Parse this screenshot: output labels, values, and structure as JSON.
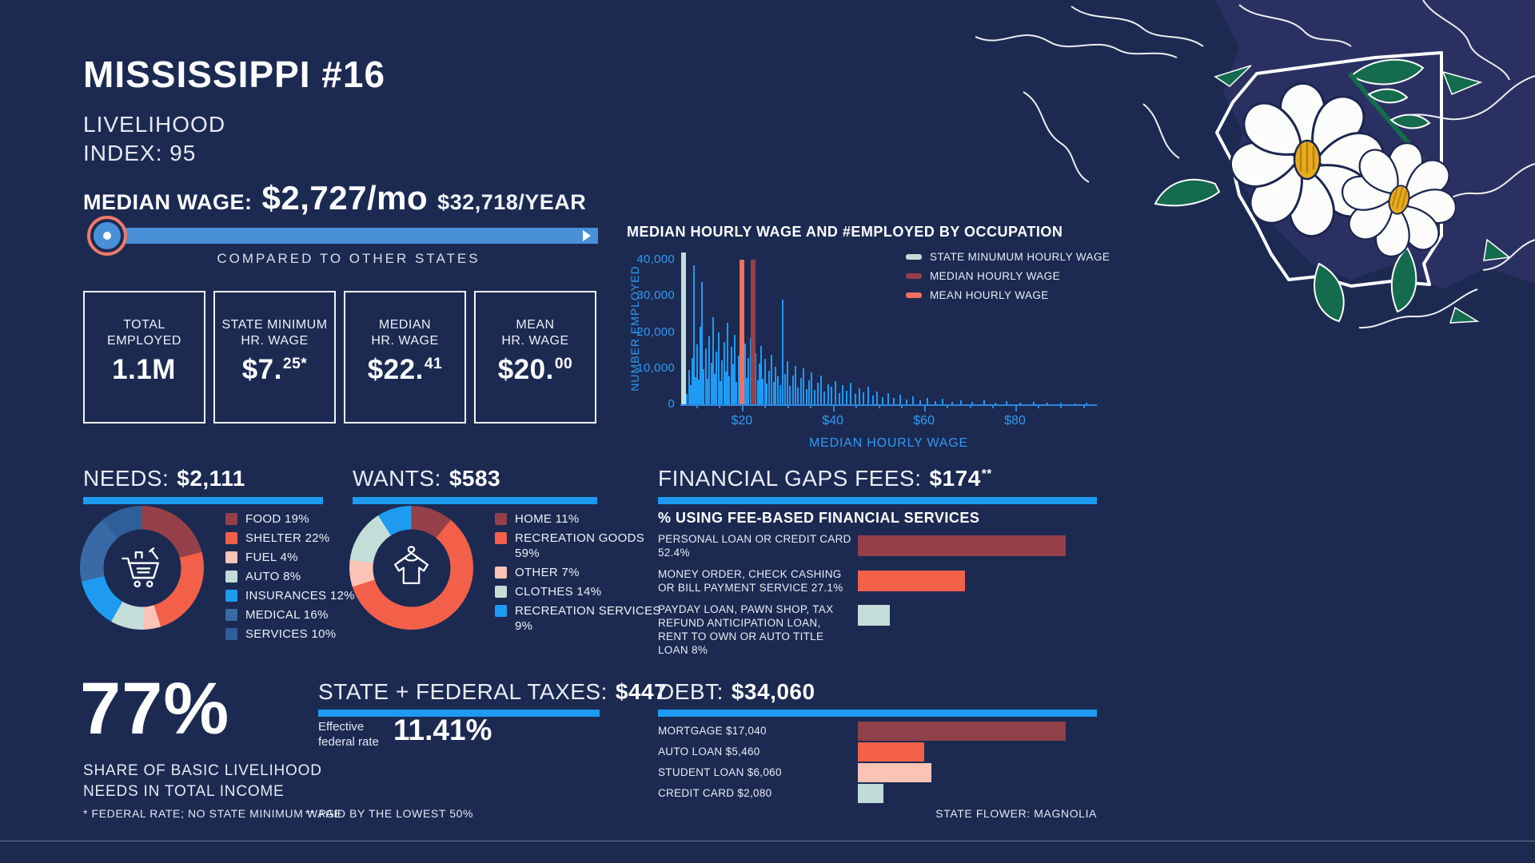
{
  "header": {
    "title": "MISSISSIPPI #16",
    "subtitle1": "LIVELIHOOD",
    "subtitle2": "INDEX: 95"
  },
  "median_wage": {
    "label": "MEDIAN WAGE:",
    "monthly": "$2,727/mo",
    "yearly": "$32,718/YEAR",
    "slider_caption": "COMPARED TO OTHER STATES"
  },
  "stat_boxes": [
    {
      "line1": "TOTAL",
      "line2": "EMPLOYED",
      "value": "1.1M",
      "sup": ""
    },
    {
      "line1": "STATE MINIMUM",
      "line2": "HR. WAGE",
      "value": "$7.",
      "sup": "25*"
    },
    {
      "line1": "MEDIAN",
      "line2": "HR. WAGE",
      "value": "$22.",
      "sup": "41"
    },
    {
      "line1": "MEAN",
      "line2": "HR. WAGE",
      "value": "$20.",
      "sup": "00"
    }
  ],
  "sections": {
    "share": {
      "value": "77%",
      "caption1": "SHARE OF BASIC LIVELIHOOD",
      "caption2": "NEEDS IN TOTAL INCOME"
    },
    "taxes": {
      "label": "STATE + FEDERAL TAXES:",
      "value": "$447",
      "rate_label1": "Effective",
      "rate_label2": "federal rate",
      "rate_value": "11.41%"
    }
  },
  "footnotes": {
    "f1": "* FEDERAL RATE; NO STATE MINIMUM WAGE",
    "f2": "** PAID BY THE LOWEST 50%",
    "flower": "STATE FLOWER: MAGNOLIA"
  },
  "colors": {
    "background": "#1C2A52",
    "art_background": "#2A3162",
    "accent_blue": "#1E9BF0",
    "slider_blue": "#4A90D8",
    "thumb_ring": "#F0796B",
    "chart_text_blue": "#2E9BF0",
    "bar_blue": "#1E9BF5",
    "maroon": "#954049",
    "coral": "#F2604A",
    "pink": "#F9C3B5",
    "mint": "#C3DED9",
    "medium_blue": "#3A6AA6",
    "dark_medium_blue": "#305E99"
  },
  "chart_data": [
    {
      "id": "occupation_histogram",
      "type": "bar",
      "title": "MEDIAN HOURLY WAGE AND #EMPLOYED BY OCCUPATION",
      "xlabel": "MEDIAN HOURLY WAGE",
      "ylabel": "NUMBER EMPLOYED",
      "xlim": [
        6.5,
        98
      ],
      "ylim": [
        0,
        42000
      ],
      "grid": false,
      "legend_position": "top-right",
      "yticks": [
        {
          "v": 0,
          "label": "0"
        },
        {
          "v": 10000,
          "label": "10,000"
        },
        {
          "v": 20000,
          "label": "20,000"
        },
        {
          "v": 30000,
          "label": "30,000"
        },
        {
          "v": 40000,
          "label": "40,000"
        }
      ],
      "xticks": [
        {
          "v": 20,
          "label": "$20"
        },
        {
          "v": 40,
          "label": "$40"
        },
        {
          "v": 60,
          "label": "$60"
        },
        {
          "v": 80,
          "label": "$80"
        }
      ],
      "minor_tick_step": 5,
      "legend": [
        {
          "label": "STATE MINUMUM HOURLY WAGE",
          "color": "#C3DED9"
        },
        {
          "label": "MEDIAN HOURLY WAGE",
          "color": "#954049"
        },
        {
          "label": "MEAN HOURLY WAGE",
          "color": "#F0705F"
        }
      ],
      "markers": [
        {
          "label": "STATE MINUMUM HOURLY WAGE",
          "x": 7.25,
          "top": 42000,
          "color": "#C3DED9",
          "layer": "back"
        },
        {
          "label": "MEAN HOURLY WAGE",
          "x": 20.0,
          "top": 40000,
          "color": "#F0705F",
          "layer": "front"
        },
        {
          "label": "MEDIAN HOURLY WAGE",
          "x": 22.41,
          "top": 40000,
          "color": "#954049",
          "layer": "front"
        }
      ],
      "bar_color": "#1E9BF5",
      "bars": [
        [
          7.8,
          2800
        ],
        [
          8.2,
          9500
        ],
        [
          8.6,
          5200
        ],
        [
          9.0,
          12800
        ],
        [
          9.3,
          38500
        ],
        [
          9.7,
          7600
        ],
        [
          10.0,
          16500
        ],
        [
          10.4,
          6900
        ],
        [
          10.8,
          21500
        ],
        [
          11.1,
          33800
        ],
        [
          11.5,
          9800
        ],
        [
          11.9,
          15400
        ],
        [
          12.3,
          7100
        ],
        [
          12.7,
          18900
        ],
        [
          13.1,
          11600
        ],
        [
          13.5,
          24200
        ],
        [
          13.9,
          8300
        ],
        [
          14.3,
          14700
        ],
        [
          14.7,
          19800
        ],
        [
          15.1,
          6500
        ],
        [
          15.5,
          12200
        ],
        [
          15.9,
          17300
        ],
        [
          16.3,
          9100
        ],
        [
          16.7,
          22600
        ],
        [
          17.1,
          7800
        ],
        [
          17.5,
          15900
        ],
        [
          17.9,
          11000
        ],
        [
          18.3,
          19200
        ],
        [
          18.7,
          6200
        ],
        [
          19.1,
          13500
        ],
        [
          19.5,
          9600
        ],
        [
          20.5,
          16800
        ],
        [
          20.9,
          7400
        ],
        [
          21.3,
          12900
        ],
        [
          21.7,
          18400
        ],
        [
          22.1,
          8800
        ],
        [
          22.9,
          14100
        ],
        [
          23.3,
          6600
        ],
        [
          23.7,
          11300
        ],
        [
          24.1,
          16100
        ],
        [
          24.5,
          7000
        ],
        [
          24.9,
          12500
        ],
        [
          25.3,
          5800
        ],
        [
          25.8,
          9300
        ],
        [
          26.3,
          13800
        ],
        [
          26.8,
          6100
        ],
        [
          27.3,
          10400
        ],
        [
          27.8,
          7700
        ],
        [
          28.3,
          5400
        ],
        [
          28.8,
          29000
        ],
        [
          29.3,
          8500
        ],
        [
          29.8,
          11900
        ],
        [
          30.4,
          5100
        ],
        [
          31.0,
          8000
        ],
        [
          31.6,
          10700
        ],
        [
          32.2,
          4700
        ],
        [
          32.8,
          7300
        ],
        [
          33.4,
          9900
        ],
        [
          34.0,
          4300
        ],
        [
          34.6,
          6700
        ],
        [
          35.2,
          8900
        ],
        [
          35.9,
          3900
        ],
        [
          36.6,
          6000
        ],
        [
          37.3,
          7900
        ],
        [
          38.0,
          3500
        ],
        [
          38.8,
          5600
        ],
        [
          39.6,
          4900
        ],
        [
          40.4,
          6400
        ],
        [
          41.2,
          3100
        ],
        [
          42.0,
          5200
        ],
        [
          42.9,
          3800
        ],
        [
          43.8,
          5900
        ],
        [
          44.7,
          2800
        ],
        [
          45.6,
          4400
        ],
        [
          46.6,
          3300
        ],
        [
          47.6,
          4800
        ],
        [
          48.6,
          2500
        ],
        [
          49.6,
          3600
        ],
        [
          50.8,
          2100
        ],
        [
          52.0,
          3000
        ],
        [
          53.3,
          1700
        ],
        [
          54.6,
          2600
        ],
        [
          56.0,
          1400
        ],
        [
          57.5,
          2200
        ],
        [
          59.0,
          1100
        ],
        [
          60.6,
          1800
        ],
        [
          62.3,
          900
        ],
        [
          64.0,
          1500
        ],
        [
          66.0,
          750
        ],
        [
          68.0,
          1200
        ],
        [
          70.5,
          600
        ],
        [
          73.0,
          1000
        ],
        [
          75.5,
          500
        ],
        [
          78.0,
          850
        ],
        [
          81.0,
          420
        ],
        [
          84.0,
          700
        ],
        [
          87.0,
          350
        ],
        [
          90.0,
          550
        ],
        [
          93.0,
          280
        ],
        [
          95.5,
          450
        ]
      ]
    },
    {
      "id": "needs_donut",
      "type": "pie",
      "label": "NEEDS:",
      "value": "$2,111",
      "slices": [
        {
          "label": "FOOD 19%",
          "value": 19,
          "color": "#954049"
        },
        {
          "label": "SHELTER 22%",
          "value": 22,
          "color": "#F2604A"
        },
        {
          "label": "FUEL 4%",
          "value": 4,
          "color": "#F9C3B5"
        },
        {
          "label": "AUTO 8%",
          "value": 8,
          "color": "#C3DED9"
        },
        {
          "label": "INSURANCES 12%",
          "value": 12,
          "color": "#1E9BF0"
        },
        {
          "label": "MEDICAL 16%",
          "value": 16,
          "color": "#3A6AA6"
        },
        {
          "label": "SERVICES 10%",
          "value": 10,
          "color": "#305E99"
        }
      ]
    },
    {
      "id": "wants_donut",
      "type": "pie",
      "label": "WANTS:",
      "value": "$583",
      "slices": [
        {
          "label": "HOME 11%",
          "value": 11,
          "color": "#954049"
        },
        {
          "label": "RECREATION GOODS 59%",
          "value": 59,
          "color": "#F2604A"
        },
        {
          "label": "OTHER 7%",
          "value": 7,
          "color": "#F9C3B5"
        },
        {
          "label": "CLOTHES 14%",
          "value": 14,
          "color": "#C3DED9"
        },
        {
          "label": "RECREATION SERVICES 9%",
          "value": 9,
          "color": "#1E9BF0"
        }
      ]
    },
    {
      "id": "fee_services",
      "type": "bar",
      "label": "FINANCIAL GAPS FEES:",
      "value": "$174",
      "sup": "**",
      "subtitle": "% USING FEE-BASED FINANCIAL SERVICES",
      "max_value": 52.4,
      "rows": [
        {
          "label": "PERSONAL LOAN OR CREDIT CARD 52.4%",
          "value": 52.4,
          "color": "#954049"
        },
        {
          "label": "MONEY ORDER, CHECK CASHING OR BILL PAYMENT SERVICE 27.1%",
          "value": 27.1,
          "color": "#F2604A"
        },
        {
          "label": "PAYDAY LOAN, PAWN SHOP, TAX REFUND ANTICIPATION LOAN, RENT TO OWN OR AUTO TITLE LOAN 8%",
          "value": 8,
          "color": "#C3DED9"
        }
      ]
    },
    {
      "id": "debt",
      "type": "bar",
      "label": "DEBT:",
      "value": "$34,060",
      "max_value": 17040,
      "rows": [
        {
          "label": "MORTGAGE $17,040",
          "value": 17040,
          "color": "#8F4048"
        },
        {
          "label": "AUTO LOAN $5,460",
          "value": 5460,
          "color": "#F2604A"
        },
        {
          "label": "STUDENT LOAN $6,060",
          "value": 6060,
          "color": "#F9C3B5"
        },
        {
          "label": "CREDIT CARD $2,080",
          "value": 2080,
          "color": "#BFDCD8"
        }
      ]
    }
  ]
}
